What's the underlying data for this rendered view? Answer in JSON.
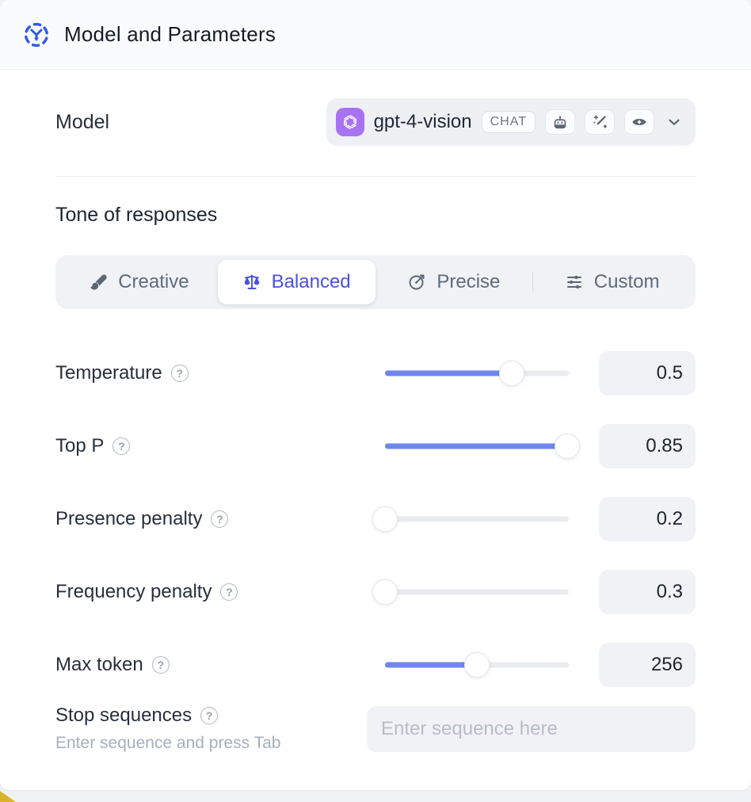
{
  "window": {
    "title": "Model and Parameters"
  },
  "model_section": {
    "label": "Model",
    "select": {
      "provider_icon": "openai-logo-icon",
      "model_name": "gpt-4-vision",
      "type_badge": "CHAT",
      "capability_icons": [
        "robot-icon",
        "magic-wand-icon",
        "vision-eye-icon"
      ],
      "chevron_icon": "chevron-down-icon"
    }
  },
  "tone_section": {
    "title": "Tone of responses",
    "options": [
      {
        "label": "Creative",
        "icon": "paintbrush-icon",
        "selected": false
      },
      {
        "label": "Balanced",
        "icon": "scale-icon",
        "selected": true
      },
      {
        "label": "Precise",
        "icon": "goal-icon",
        "selected": false
      },
      {
        "label": "Custom",
        "icon": "sliders-icon",
        "selected": false
      }
    ]
  },
  "parameters": [
    {
      "label": "Temperature",
      "value": "0.5",
      "fill_percent": 69
    },
    {
      "label": "Top P",
      "value": "0.85",
      "fill_percent": 99
    },
    {
      "label": "Presence penalty",
      "value": "0.2",
      "fill_percent": 0
    },
    {
      "label": "Frequency penalty",
      "value": "0.3",
      "fill_percent": 0
    },
    {
      "label": "Max token",
      "value": "256",
      "fill_percent": 50
    }
  ],
  "stop_sequences": {
    "label": "Stop sequences",
    "hint": "Enter sequence and press Tab",
    "placeholder": "Enter sequence here"
  },
  "help_glyph": "?",
  "colors": {
    "accent": "#4a50e0",
    "slider_fill": "#6e86ee",
    "provider_badge": "#a873f2",
    "header_icon": "#2f57f0"
  }
}
